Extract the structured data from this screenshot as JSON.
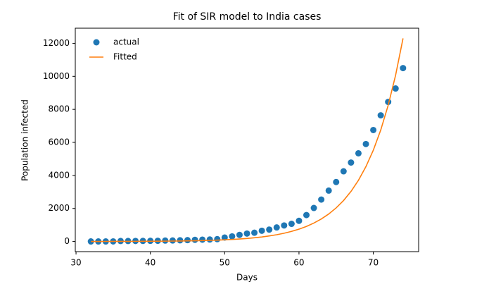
{
  "chart_data": {
    "type": "scatter",
    "title": "Fit of SIR model to India cases",
    "xlabel": "Days",
    "ylabel": "Population infected",
    "x": [
      32,
      33,
      34,
      35,
      36,
      37,
      38,
      39,
      40,
      41,
      42,
      43,
      44,
      45,
      46,
      47,
      48,
      49,
      50,
      51,
      52,
      53,
      54,
      55,
      56,
      57,
      58,
      59,
      60,
      61,
      62,
      63,
      64,
      65,
      66,
      67,
      68,
      69,
      70,
      71,
      72,
      73,
      74
    ],
    "series": [
      {
        "name": "actual",
        "type": "scatter",
        "color": "#1f77b4",
        "values": [
          3,
          3,
          3,
          5,
          28,
          30,
          31,
          34,
          39,
          43,
          56,
          62,
          73,
          82,
          102,
          113,
          119,
          142,
          240,
          310,
          400,
          480,
          530,
          650,
          720,
          850,
          970,
          1070,
          1250,
          1600,
          2030,
          2540,
          3080,
          3600,
          4250,
          4780,
          5340,
          5900,
          6750,
          7640,
          8450,
          9265,
          10500
        ]
      },
      {
        "name": "Fitted",
        "type": "line",
        "color": "#ff7f0e",
        "values": [
          3,
          3,
          4,
          5,
          6,
          7,
          9,
          11,
          14,
          17,
          20,
          25,
          30,
          37,
          45,
          56,
          68,
          83,
          101,
          124,
          151,
          184,
          225,
          275,
          336,
          410,
          501,
          612,
          748,
          913,
          1116,
          1363,
          1665,
          2033,
          2483,
          3033,
          3705,
          4525,
          5527,
          6750,
          8245,
          10070,
          12300
        ]
      }
    ],
    "xlim": [
      29.9,
      76.1
    ],
    "ylim": [
      -615,
      12915
    ],
    "xticks": [
      30,
      40,
      50,
      60,
      70
    ],
    "yticks": [
      0,
      2000,
      4000,
      6000,
      8000,
      10000,
      12000
    ],
    "grid": false,
    "legend": "upper left"
  }
}
